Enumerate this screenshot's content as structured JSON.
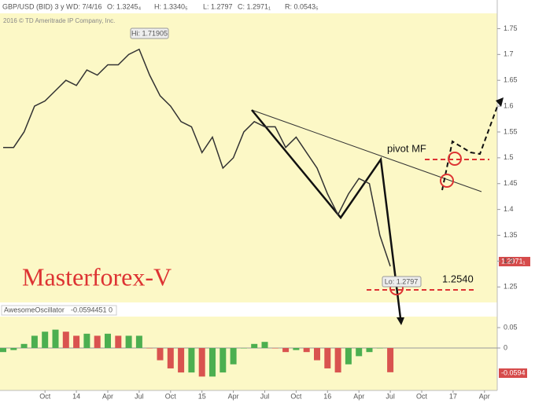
{
  "header": {
    "symbol": "GBP/USD (BID) 3 y W",
    "date": "D: 7/4/16",
    "open": "O: 1.3245₄",
    "high": "H: 1.3340₅",
    "low": "L: 1.2797",
    "close": "C: 1.2971₁",
    "range": "R: 0.0543₅",
    "copyright": "2016 © TD Ameritrade IP Company, Inc."
  },
  "chart_data": [
    {
      "type": "line",
      "color": "#333333",
      "values": [
        1.52,
        1.52,
        1.55,
        1.6,
        1.61,
        1.63,
        1.65,
        1.64,
        1.67,
        1.66,
        1.68,
        1.68,
        1.7,
        1.71,
        1.66,
        1.62,
        1.6,
        1.57,
        1.56,
        1.51,
        1.54,
        1.48,
        1.5,
        1.55,
        1.57,
        1.56,
        1.56,
        1.52,
        1.54,
        1.51,
        1.48,
        1.43,
        1.39,
        1.43,
        1.46,
        1.45,
        1.35,
        1.29,
        null,
        null,
        null,
        null,
        null,
        null,
        null,
        null,
        null
      ],
      "ylim": [
        1.22,
        1.775
      ],
      "yticks": [
        1.25,
        1.3,
        1.35,
        1.4,
        1.45,
        1.5,
        1.55,
        1.6,
        1.65,
        1.7,
        1.75
      ],
      "annotations": {
        "hi": "Hi: 1.71905",
        "lo": "Lo: 1.2797",
        "pivot": "pivot MF",
        "level": "1.2540",
        "brand": "Masterforex-V",
        "last": "1.2971₁"
      }
    },
    {
      "type": "bar",
      "title": "AwesomeOscillator",
      "value_text": "-0.0594451",
      "zero_text": "0",
      "last": "-0.0594",
      "categories": [
        null,
        null,
        null,
        null,
        "Oct",
        null,
        null,
        "14",
        null,
        null,
        "Apr",
        null,
        null,
        "Jul",
        null,
        null,
        "Oct",
        null,
        null,
        "15",
        null,
        null,
        "Apr",
        null,
        null,
        "Jul",
        null,
        null,
        "Oct",
        null,
        null,
        "16",
        null,
        null,
        "Apr",
        null,
        null,
        "Jul",
        null,
        null,
        "Oct",
        null,
        null,
        "17",
        null,
        null,
        "Apr"
      ],
      "values": [
        -0.01,
        -0.005,
        0.01,
        0.03,
        0.04,
        0.045,
        0.04,
        0.03,
        0.035,
        0.03,
        0.035,
        0.03,
        0.03,
        0.03,
        0.0,
        -0.03,
        -0.05,
        -0.06,
        -0.06,
        -0.07,
        -0.07,
        -0.06,
        -0.04,
        0.0,
        0.01,
        0.015,
        0.0,
        -0.01,
        -0.005,
        -0.01,
        -0.03,
        -0.05,
        -0.06,
        -0.04,
        -0.02,
        -0.01,
        0.0,
        -0.0594,
        null,
        null,
        null,
        null,
        null,
        null,
        null,
        null,
        null
      ],
      "up_color": "#4caf50",
      "down_color": "#d9534f",
      "ylim": [
        -0.104,
        0.077
      ],
      "yticks": [
        0,
        0.05
      ]
    }
  ]
}
